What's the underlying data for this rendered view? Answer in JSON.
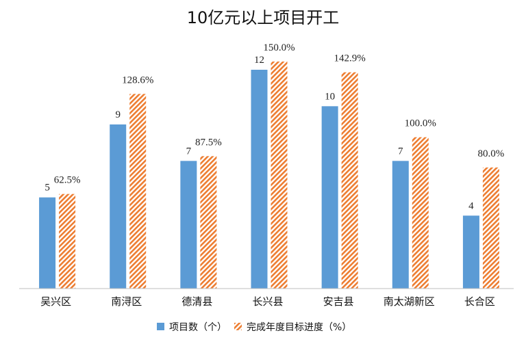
{
  "chart_data": {
    "type": "bar",
    "title": "10亿元以上项目开工",
    "categories": [
      "吴兴区",
      "南浔区",
      "德清县",
      "长兴县",
      "安吉县",
      "南太湖新区",
      "长合区"
    ],
    "series": [
      {
        "name": "项目数（个）",
        "values": [
          5,
          9,
          7,
          12,
          10,
          7,
          4
        ],
        "labels": [
          "5",
          "9",
          "7",
          "12",
          "10",
          "7",
          "4"
        ],
        "color": "#5B9BD5",
        "pattern": "solid"
      },
      {
        "name": "完成年度目标进度（%）",
        "values": [
          62.5,
          128.6,
          87.5,
          150.0,
          142.9,
          100.0,
          80.0
        ],
        "labels": [
          "62.5%",
          "128.6%",
          "87.5%",
          "150.0%",
          "142.9%",
          "100.0%",
          "80.0%"
        ],
        "color": "#ED7D31",
        "pattern": "diagonal-stripes"
      }
    ],
    "xlabel": "",
    "ylabel": "",
    "grid": false,
    "legend_position": "bottom"
  }
}
